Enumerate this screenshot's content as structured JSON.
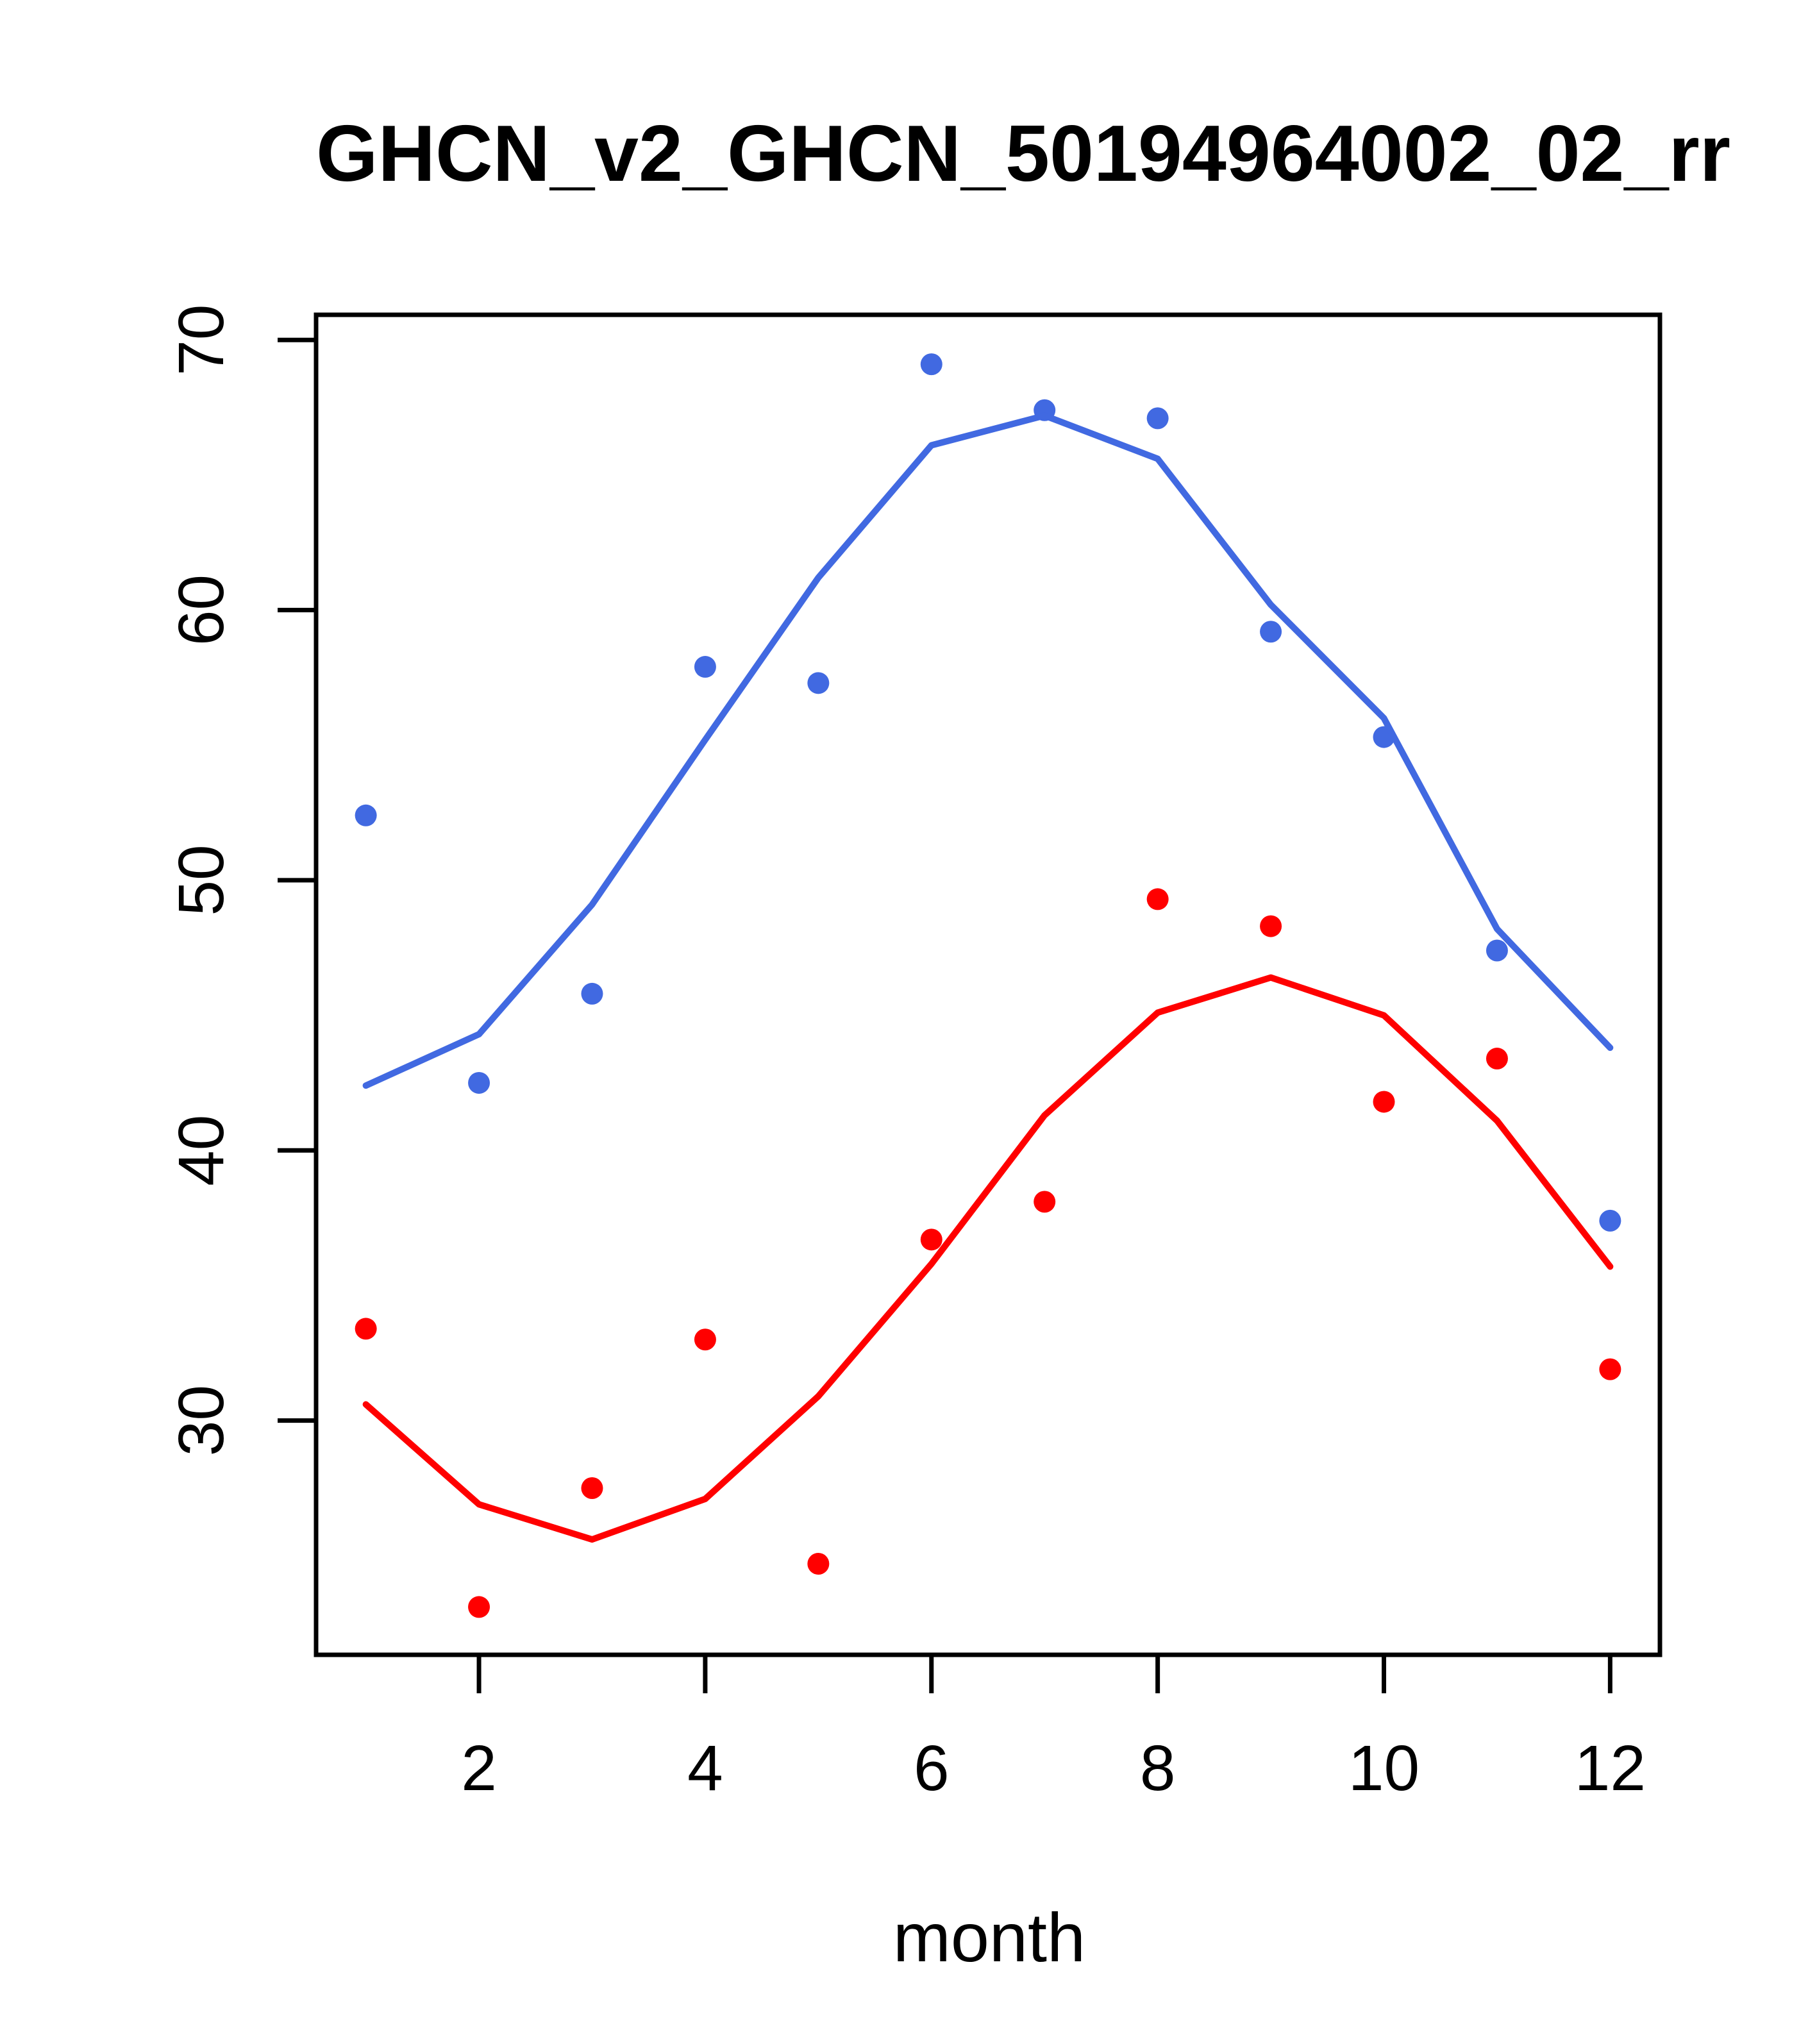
{
  "title": "GHCN_v2_GHCN_50194964002_02_rr",
  "axes": {
    "xlabel": "month",
    "x_ticks": [
      2,
      4,
      6,
      8,
      10,
      12
    ],
    "y_ticks": [
      30,
      40,
      50,
      60,
      70
    ]
  },
  "colors": {
    "max_series": "#4169E1",
    "min_series": "#FF0000",
    "axis": "#000000",
    "background": "#FFFFFF"
  },
  "chart_data": {
    "type": "scatter",
    "title": "GHCN_v2_GHCN_50194964002_02_rr",
    "xlabel": "month",
    "ylabel": "",
    "x": [
      1,
      2,
      3,
      4,
      5,
      6,
      7,
      8,
      9,
      10,
      11,
      12
    ],
    "xlim": [
      0.56,
      12.44
    ],
    "ylim": [
      21.33,
      70.93
    ],
    "x_ticks": [
      2,
      4,
      6,
      8,
      10,
      12
    ],
    "y_ticks": [
      30,
      40,
      50,
      60,
      70
    ],
    "grid": false,
    "legend": null,
    "series": [
      {
        "name": "upper-temperature-points",
        "style": "points",
        "color": "#4169E1",
        "values": [
          52.4,
          42.5,
          45.8,
          57.9,
          57.3,
          69.1,
          67.4,
          67.1,
          59.2,
          55.3,
          47.4,
          37.4
        ]
      },
      {
        "name": "upper-temperature-smooth-line",
        "style": "line",
        "color": "#4169E1",
        "values": [
          42.4,
          44.3,
          49.1,
          55.2,
          61.2,
          66.1,
          67.2,
          65.6,
          60.2,
          56.0,
          48.2,
          43.8
        ]
      },
      {
        "name": "lower-temperature-points",
        "style": "points",
        "color": "#FF0000",
        "values": [
          33.4,
          23.1,
          27.5,
          33.0,
          24.7,
          36.7,
          38.1,
          49.3,
          48.3,
          41.8,
          43.4,
          31.9
        ]
      },
      {
        "name": "lower-temperature-smooth-line",
        "style": "line",
        "color": "#FF0000",
        "values": [
          30.6,
          26.9,
          25.6,
          27.1,
          30.9,
          35.8,
          41.3,
          45.1,
          46.4,
          45.0,
          41.1,
          35.7
        ]
      }
    ]
  }
}
